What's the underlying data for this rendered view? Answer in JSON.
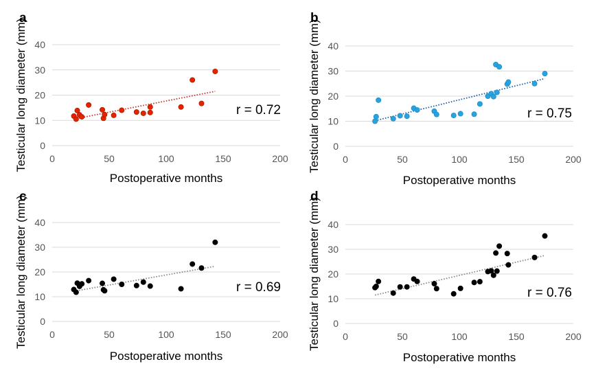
{
  "figure_colors": {
    "grid": "#d9d9d9",
    "tick_text": "#555555",
    "text": "#000000"
  },
  "chart_data": [
    {
      "panel": "a",
      "type": "scatter",
      "title": "",
      "xlabel": "Postoperative months",
      "ylabel": "Testicular long diameter (mm)",
      "xlim": [
        0,
        200
      ],
      "ylim": [
        0,
        40
      ],
      "xticks": [
        0,
        50,
        100,
        150,
        200
      ],
      "yticks": [
        0,
        10,
        20,
        30,
        40
      ],
      "grid": "horizontal",
      "annotation": "r = 0.72",
      "marker_color": "#e32400",
      "marker_edge": "#b01a00",
      "trend_color": "#c0392b",
      "trendline": {
        "x": [
          19,
          143
        ],
        "y": [
          10.5,
          21.5
        ]
      },
      "points": [
        {
          "x": 19,
          "y": 11.7
        },
        {
          "x": 21,
          "y": 10.5
        },
        {
          "x": 22,
          "y": 13.9
        },
        {
          "x": 24,
          "y": 12.2
        },
        {
          "x": 26,
          "y": 11.4
        },
        {
          "x": 32,
          "y": 16.1
        },
        {
          "x": 44,
          "y": 14.2
        },
        {
          "x": 45,
          "y": 10.8
        },
        {
          "x": 46,
          "y": 12.3
        },
        {
          "x": 54,
          "y": 12.0
        },
        {
          "x": 61,
          "y": 14.0
        },
        {
          "x": 74,
          "y": 13.3
        },
        {
          "x": 80,
          "y": 12.8
        },
        {
          "x": 86,
          "y": 15.3
        },
        {
          "x": 86,
          "y": 13.1
        },
        {
          "x": 113,
          "y": 15.3
        },
        {
          "x": 123,
          "y": 26.0
        },
        {
          "x": 131,
          "y": 16.7
        },
        {
          "x": 143,
          "y": 29.4
        }
      ]
    },
    {
      "panel": "b",
      "type": "scatter",
      "title": "",
      "xlabel": "Postoperative months",
      "ylabel": "Testicular long diameter (mm)",
      "xlim": [
        0,
        200
      ],
      "ylim": [
        0,
        40
      ],
      "xticks": [
        0,
        50,
        100,
        150,
        200
      ],
      "yticks": [
        0,
        10,
        20,
        30,
        40
      ],
      "grid": "horizontal",
      "annotation": "r = 0.75",
      "marker_color": "#29a3e0",
      "marker_edge": "#1d8cc4",
      "trend_color": "#1f5fa8",
      "trendline": {
        "x": [
          26,
          175
        ],
        "y": [
          10.2,
          27.0
        ]
      },
      "points": [
        {
          "x": 26,
          "y": 10.0
        },
        {
          "x": 27,
          "y": 11.8
        },
        {
          "x": 29,
          "y": 18.4
        },
        {
          "x": 42,
          "y": 11.0
        },
        {
          "x": 48,
          "y": 12.2
        },
        {
          "x": 54,
          "y": 12.0
        },
        {
          "x": 60,
          "y": 15.2
        },
        {
          "x": 63,
          "y": 14.5
        },
        {
          "x": 78,
          "y": 14.0
        },
        {
          "x": 80,
          "y": 12.7
        },
        {
          "x": 95,
          "y": 12.3
        },
        {
          "x": 101,
          "y": 13.0
        },
        {
          "x": 113,
          "y": 12.8
        },
        {
          "x": 118,
          "y": 16.9
        },
        {
          "x": 125,
          "y": 20.0
        },
        {
          "x": 128,
          "y": 21.0
        },
        {
          "x": 130,
          "y": 19.8
        },
        {
          "x": 132,
          "y": 32.6
        },
        {
          "x": 133,
          "y": 21.5
        },
        {
          "x": 135,
          "y": 31.7
        },
        {
          "x": 142,
          "y": 24.8
        },
        {
          "x": 143,
          "y": 25.6
        },
        {
          "x": 166,
          "y": 25.0
        },
        {
          "x": 175,
          "y": 29.0
        }
      ]
    },
    {
      "panel": "c",
      "type": "scatter",
      "title": "",
      "xlabel": "Postoperative months",
      "ylabel": "Testicular long diameter (mm)",
      "xlim": [
        0,
        200
      ],
      "ylim": [
        0,
        40
      ],
      "xticks": [
        0,
        50,
        100,
        150,
        200
      ],
      "yticks": [
        0,
        10,
        20,
        30,
        40
      ],
      "grid": "horizontal",
      "annotation": "r = 0.69",
      "marker_color": "#000000",
      "marker_edge": "#000000",
      "trend_color": "#8a8a8a",
      "trendline": {
        "x": [
          19,
          143
        ],
        "y": [
          12.2,
          22.3
        ]
      },
      "points": [
        {
          "x": 19,
          "y": 12.9
        },
        {
          "x": 21,
          "y": 11.8
        },
        {
          "x": 22,
          "y": 15.5
        },
        {
          "x": 24,
          "y": 14.2
        },
        {
          "x": 26,
          "y": 15.2
        },
        {
          "x": 32,
          "y": 16.5
        },
        {
          "x": 44,
          "y": 15.4
        },
        {
          "x": 45,
          "y": 12.8
        },
        {
          "x": 46,
          "y": 12.4
        },
        {
          "x": 54,
          "y": 17.1
        },
        {
          "x": 61,
          "y": 15.0
        },
        {
          "x": 74,
          "y": 14.5
        },
        {
          "x": 80,
          "y": 15.9
        },
        {
          "x": 86,
          "y": 14.3
        },
        {
          "x": 113,
          "y": 13.2
        },
        {
          "x": 123,
          "y": 23.2
        },
        {
          "x": 131,
          "y": 21.6
        },
        {
          "x": 143,
          "y": 32.0
        }
      ]
    },
    {
      "panel": "d",
      "type": "scatter",
      "title": "",
      "xlabel": "Postoperative months",
      "ylabel": "Testicular long diameter (mm)",
      "xlim": [
        0,
        200
      ],
      "ylim": [
        0,
        40
      ],
      "xticks": [
        0,
        50,
        100,
        150,
        200
      ],
      "yticks": [
        0,
        10,
        20,
        30,
        40
      ],
      "grid": "horizontal",
      "annotation": "r = 0.76",
      "marker_color": "#000000",
      "marker_edge": "#000000",
      "trend_color": "#8a8a8a",
      "trendline": {
        "x": [
          26,
          175
        ],
        "y": [
          11.5,
          27.5
        ]
      },
      "points": [
        {
          "x": 26,
          "y": 14.5
        },
        {
          "x": 27,
          "y": 15.0
        },
        {
          "x": 29,
          "y": 17.0
        },
        {
          "x": 42,
          "y": 12.3
        },
        {
          "x": 48,
          "y": 14.8
        },
        {
          "x": 54,
          "y": 14.8
        },
        {
          "x": 60,
          "y": 18.0
        },
        {
          "x": 63,
          "y": 17.0
        },
        {
          "x": 78,
          "y": 16.1
        },
        {
          "x": 80,
          "y": 14.1
        },
        {
          "x": 95,
          "y": 12.0
        },
        {
          "x": 101,
          "y": 14.2
        },
        {
          "x": 113,
          "y": 16.6
        },
        {
          "x": 118,
          "y": 16.9
        },
        {
          "x": 125,
          "y": 21.0
        },
        {
          "x": 128,
          "y": 21.3
        },
        {
          "x": 130,
          "y": 19.5
        },
        {
          "x": 132,
          "y": 28.5
        },
        {
          "x": 133,
          "y": 21.2
        },
        {
          "x": 135,
          "y": 31.3
        },
        {
          "x": 142,
          "y": 28.3
        },
        {
          "x": 143,
          "y": 23.7
        },
        {
          "x": 166,
          "y": 26.7
        },
        {
          "x": 175,
          "y": 35.4
        }
      ]
    }
  ]
}
